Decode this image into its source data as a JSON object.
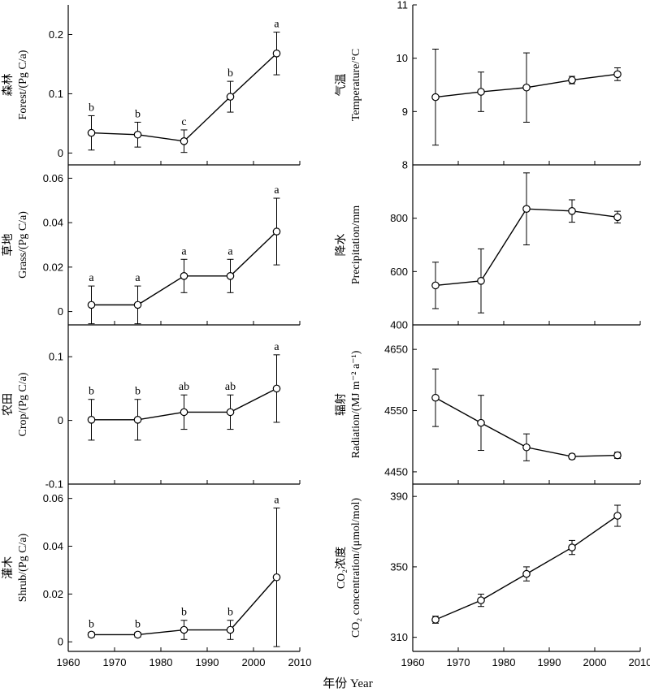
{
  "figure": {
    "xlabel": "年份 Year",
    "xticks": [
      1960,
      1970,
      1980,
      1990,
      2000,
      2010
    ]
  },
  "chart_data": [
    {
      "id": "forest",
      "type": "line",
      "column": "left",
      "ylabel_cn": "森林",
      "ylabel": "Forest/(Pg C/a)",
      "x": [
        1965,
        1975,
        1985,
        1995,
        2005
      ],
      "y": [
        0.034,
        0.031,
        0.02,
        0.095,
        0.168
      ],
      "err": [
        0.029,
        0.021,
        0.019,
        0.026,
        0.036
      ],
      "labels": [
        "b",
        "b",
        "c",
        "b",
        "a"
      ],
      "ylim": [
        -0.02,
        0.25
      ],
      "yticks": [
        "0",
        "0.1",
        "0.2"
      ],
      "ytick_values": [
        0,
        0.1,
        0.2
      ]
    },
    {
      "id": "grass",
      "type": "line",
      "column": "left",
      "ylabel_cn": "草地",
      "ylabel": "Grass/(Pg C/a)",
      "x": [
        1965,
        1975,
        1985,
        1995,
        2005
      ],
      "y": [
        0.003,
        0.003,
        0.016,
        0.016,
        0.036
      ],
      "err": [
        0.0085,
        0.0085,
        0.0075,
        0.0075,
        0.015
      ],
      "labels": [
        "a",
        "a",
        "a",
        "a",
        "a"
      ],
      "ylim": [
        -0.006,
        0.066
      ],
      "yticks": [
        "0",
        "0.02",
        "0.04",
        "0.06"
      ],
      "ytick_values": [
        0,
        0.02,
        0.04,
        0.06
      ]
    },
    {
      "id": "crop",
      "type": "line",
      "column": "left",
      "ylabel_cn": "农田",
      "ylabel": "Crop/(Pg C/a)",
      "x": [
        1965,
        1975,
        1985,
        1995,
        2005
      ],
      "y": [
        0.001,
        0.001,
        0.013,
        0.013,
        0.05
      ],
      "err": [
        0.032,
        0.032,
        0.027,
        0.027,
        0.053
      ],
      "labels": [
        "b",
        "b",
        "ab",
        "ab",
        "a"
      ],
      "ylim": [
        -0.1,
        0.15
      ],
      "yticks": [
        "-0.1",
        "0",
        "0.1"
      ],
      "ytick_values": [
        -0.1,
        0,
        0.1
      ]
    },
    {
      "id": "shrub",
      "type": "line",
      "column": "left",
      "ylabel_cn": "灌木",
      "ylabel": "Shrub/(Pg C/a)",
      "x": [
        1965,
        1975,
        1985,
        1995,
        2005
      ],
      "y": [
        0.003,
        0.003,
        0.005,
        0.005,
        0.027
      ],
      "err": [
        0.001,
        0.001,
        0.004,
        0.004,
        0.029
      ],
      "labels": [
        "b",
        "b",
        "b",
        "b",
        "a"
      ],
      "ylim": [
        -0.004,
        0.066
      ],
      "yticks": [
        "0",
        "0.02",
        "0.04",
        "0.06"
      ],
      "ytick_values": [
        0,
        0.02,
        0.04,
        0.06
      ]
    },
    {
      "id": "temperature",
      "type": "line",
      "column": "right",
      "ylabel_cn": "气温",
      "ylabel": "Temperature/°C",
      "x": [
        1965,
        1975,
        1985,
        1995,
        2005
      ],
      "y": [
        9.27,
        9.37,
        9.45,
        9.59,
        9.7
      ],
      "err": [
        0.9,
        0.37,
        0.65,
        0.07,
        0.12
      ],
      "labels": [],
      "ylim": [
        8,
        11
      ],
      "yticks": [
        "8",
        "9",
        "10",
        "11"
      ],
      "ytick_values": [
        8,
        9,
        10,
        11
      ]
    },
    {
      "id": "precipitation",
      "type": "line",
      "column": "right",
      "ylabel_cn": "降水",
      "ylabel": "Precipitation/mm",
      "x": [
        1965,
        1975,
        1985,
        1995,
        2005
      ],
      "y": [
        548,
        565,
        835,
        827,
        804
      ],
      "err": [
        87,
        120,
        135,
        42,
        22
      ],
      "labels": [],
      "ylim": [
        400,
        1000
      ],
      "yticks": [
        "400",
        "600",
        "800"
      ],
      "ytick_values": [
        400,
        600,
        800
      ]
    },
    {
      "id": "radiation",
      "type": "line",
      "column": "right",
      "ylabel_cn": "辐射",
      "ylabel": "Radiation/(MJ m⁻² a⁻¹)",
      "x": [
        1965,
        1975,
        1985,
        1995,
        2005
      ],
      "y": [
        4571,
        4530,
        4490,
        4475,
        4477
      ],
      "err": [
        47,
        45,
        22,
        4,
        5
      ],
      "labels": [],
      "ylim": [
        4430,
        4690
      ],
      "yticks": [
        "4450",
        "4550",
        "4650"
      ],
      "ytick_values": [
        4450,
        4550,
        4650
      ]
    },
    {
      "id": "co2",
      "type": "line",
      "column": "right",
      "ylabel_cn": "CO₂浓度",
      "ylabel": "CO₂ concentration/(μmol/mol)",
      "x": [
        1965,
        1975,
        1985,
        1995,
        2005
      ],
      "y": [
        320,
        331,
        346,
        361,
        379
      ],
      "err": [
        2,
        3.5,
        4,
        4,
        6
      ],
      "labels": [],
      "ylim": [
        302,
        397
      ],
      "yticks": [
        "310",
        "350",
        "390"
      ],
      "ytick_values": [
        310,
        350,
        390
      ]
    }
  ]
}
